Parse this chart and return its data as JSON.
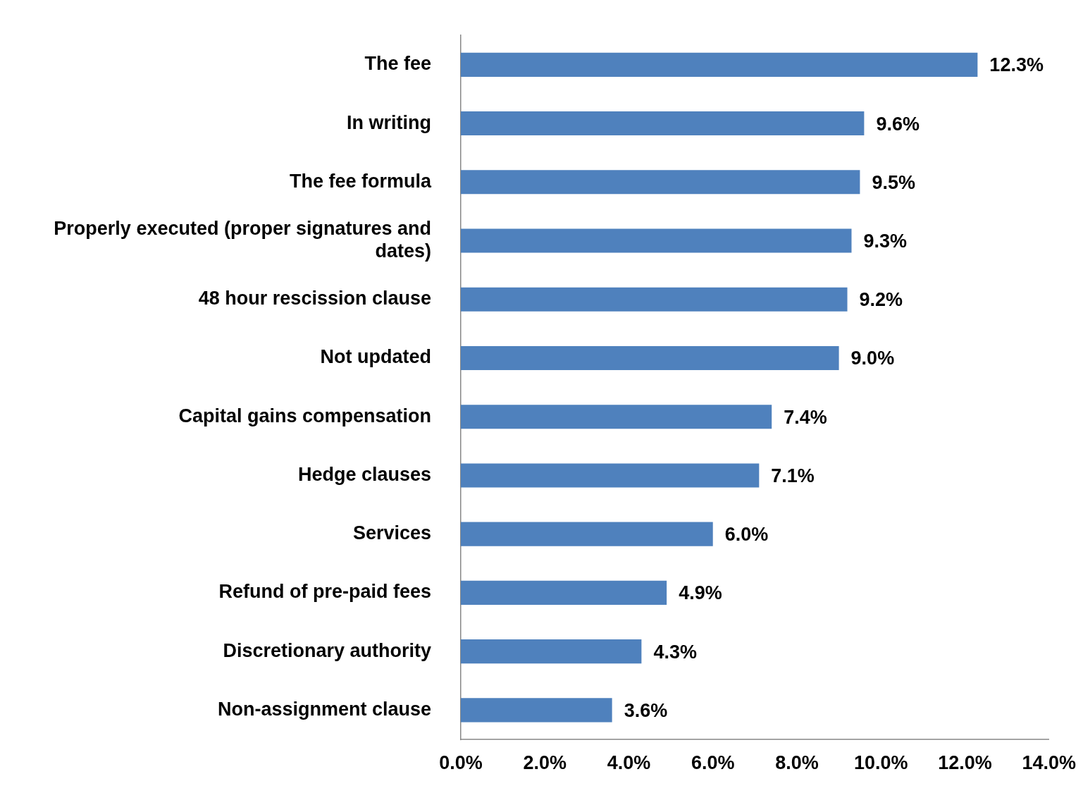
{
  "chart_data": {
    "type": "bar",
    "orientation": "horizontal",
    "categories": [
      "The fee",
      "In writing",
      "The fee formula",
      "Properly executed (proper signatures and dates)",
      "48 hour rescission clause",
      "Not updated",
      "Capital gains compensation",
      "Hedge clauses",
      "Services",
      "Refund of pre-paid fees",
      "Discretionary authority",
      "Non-assignment clause"
    ],
    "values": [
      12.3,
      9.6,
      9.5,
      9.3,
      9.2,
      9.0,
      7.4,
      7.1,
      6.0,
      4.9,
      4.3,
      3.6
    ],
    "value_labels": [
      "12.3%",
      "9.6%",
      "9.5%",
      "9.3%",
      "9.2%",
      "9.0%",
      "7.4%",
      "7.1%",
      "6.0%",
      "4.9%",
      "4.3%",
      "3.6%"
    ],
    "color": "#4f81bd",
    "xlim": [
      0,
      14
    ],
    "xticks": [
      {
        "value": 0,
        "label": "0.0%"
      },
      {
        "value": 2,
        "label": "2.0%"
      },
      {
        "value": 4,
        "label": "4.0%"
      },
      {
        "value": 6,
        "label": "6.0%"
      },
      {
        "value": 8,
        "label": "8.0%"
      },
      {
        "value": 10,
        "label": "10.0%"
      },
      {
        "value": 12,
        "label": "12.0%"
      },
      {
        "value": 14,
        "label": "14.0%"
      }
    ],
    "grid": false
  }
}
